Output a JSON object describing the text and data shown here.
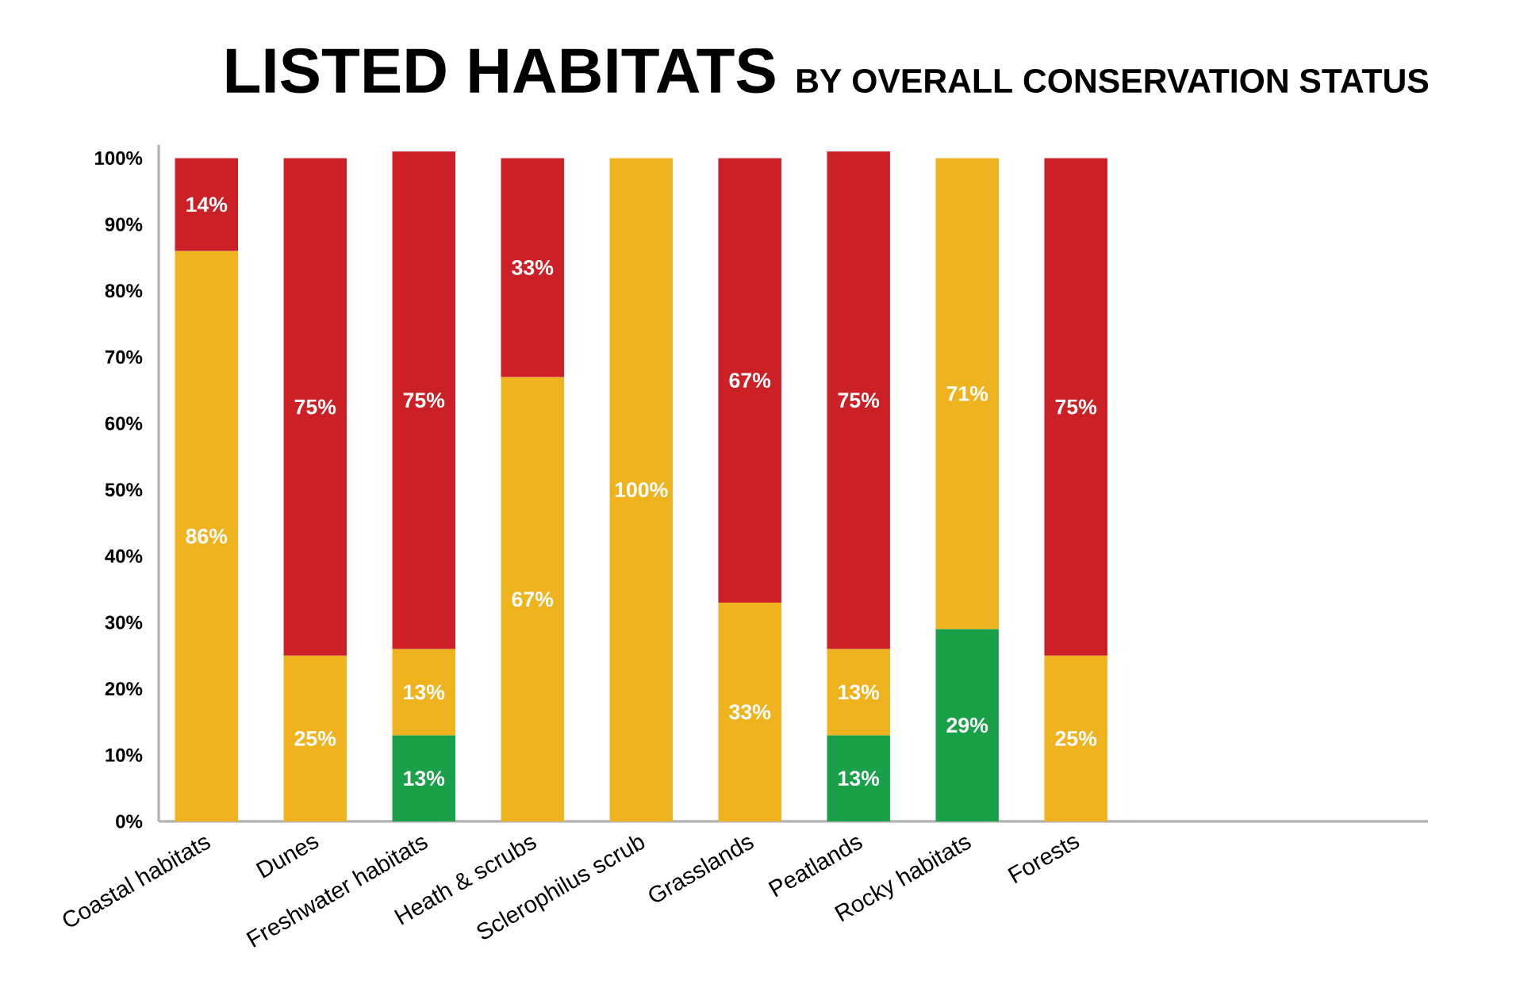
{
  "chart_data": {
    "type": "bar",
    "title": "LISTED HABITATS",
    "subtitle": "BY OVERALL CONSERVATION STATUS",
    "categories": [
      "Coastal habitats",
      "Dunes",
      "Freshwater habitats",
      "Heath & scrubs",
      "Sclerophilus scrub",
      "Grasslands",
      "Peatlands",
      "Rocky habitats",
      "Forests"
    ],
    "stacked": true,
    "series": [
      {
        "color": "#19a049",
        "values": [
          null,
          null,
          13,
          null,
          null,
          null,
          13,
          29,
          null
        ],
        "value_labels": [
          null,
          null,
          "13%",
          null,
          null,
          null,
          "13%",
          "29%",
          null
        ]
      },
      {
        "color": "#f0b320",
        "values": [
          86,
          25,
          13,
          67,
          100,
          33,
          13,
          71,
          25
        ],
        "value_labels": [
          "86%",
          "25%",
          "13%",
          "67%",
          "100%",
          "33%",
          "13%",
          "71%",
          "25%"
        ]
      },
      {
        "color": "#cc2027",
        "values": [
          14,
          75,
          75,
          33,
          null,
          67,
          75,
          null,
          75
        ],
        "value_labels": [
          "14%",
          "75%",
          "75%",
          "33%",
          null,
          "67%",
          "75%",
          null,
          "75%"
        ]
      }
    ],
    "ylim": [
      0,
      102
    ],
    "yticks": [
      {
        "value": 0,
        "label": "0%"
      },
      {
        "value": 10,
        "label": "10%"
      },
      {
        "value": 20,
        "label": "20%"
      },
      {
        "value": 30,
        "label": "30%"
      },
      {
        "value": 40,
        "label": "40%"
      },
      {
        "value": 50,
        "label": "50%"
      },
      {
        "value": 60,
        "label": "60%"
      },
      {
        "value": 70,
        "label": "70%"
      },
      {
        "value": 80,
        "label": "80%"
      },
      {
        "value": 90,
        "label": "90%"
      },
      {
        "value": 100,
        "label": "100%"
      }
    ]
  }
}
